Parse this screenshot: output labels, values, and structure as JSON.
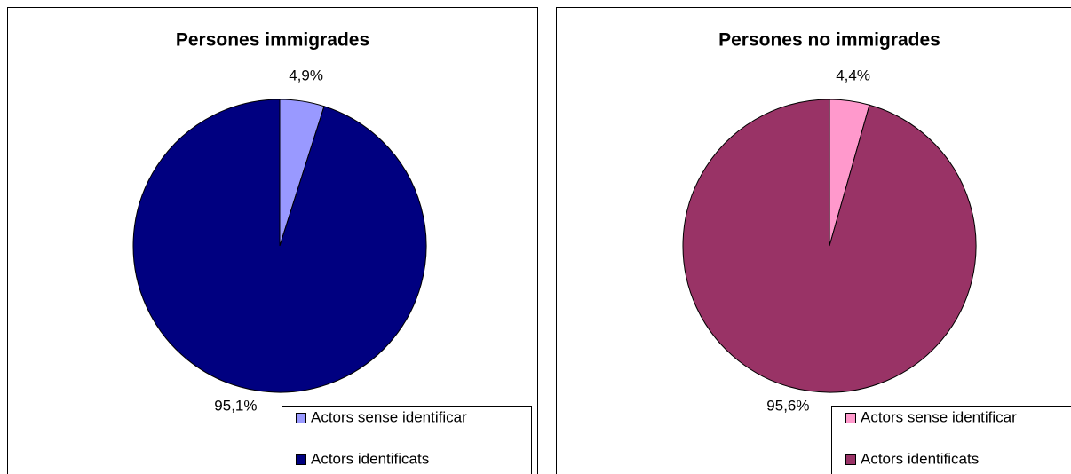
{
  "chart_data": [
    {
      "type": "pie",
      "title": "Persones immigrades",
      "categories": [
        "Actors sense identificar",
        "Actors identificats"
      ],
      "values": [
        4.9,
        95.1
      ],
      "value_labels": [
        "4,9%",
        "95,1%"
      ],
      "colors": [
        "#9999ff",
        "#000080"
      ]
    },
    {
      "type": "pie",
      "title": "Persones no immigrades",
      "categories": [
        "Actors sense identificar",
        "Actors identificats"
      ],
      "values": [
        4.4,
        95.6
      ],
      "value_labels": [
        "4,4%",
        "95,6%"
      ],
      "colors": [
        "#ff99cc",
        "#993366"
      ]
    }
  ]
}
